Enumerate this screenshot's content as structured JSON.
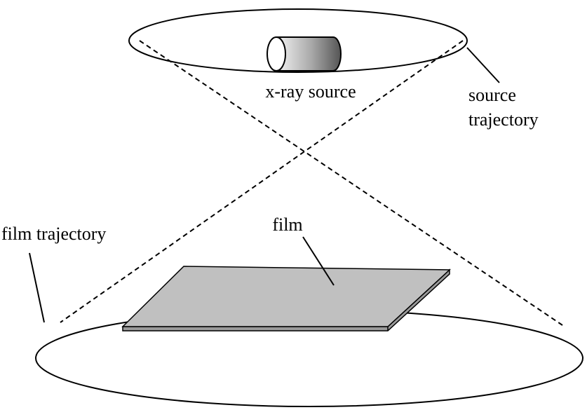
{
  "labels": {
    "source": "x-ray source",
    "source_trajectory_line1": "source",
    "source_trajectory_line2": "trajectory",
    "film": "film",
    "film_trajectory": "film trajectory"
  },
  "colors": {
    "stroke": "#000000",
    "film_fill": "#c0c0c0",
    "film_edge": "#9a9a9a",
    "tube_light": "#ffffff",
    "tube_dark": "#555555"
  }
}
